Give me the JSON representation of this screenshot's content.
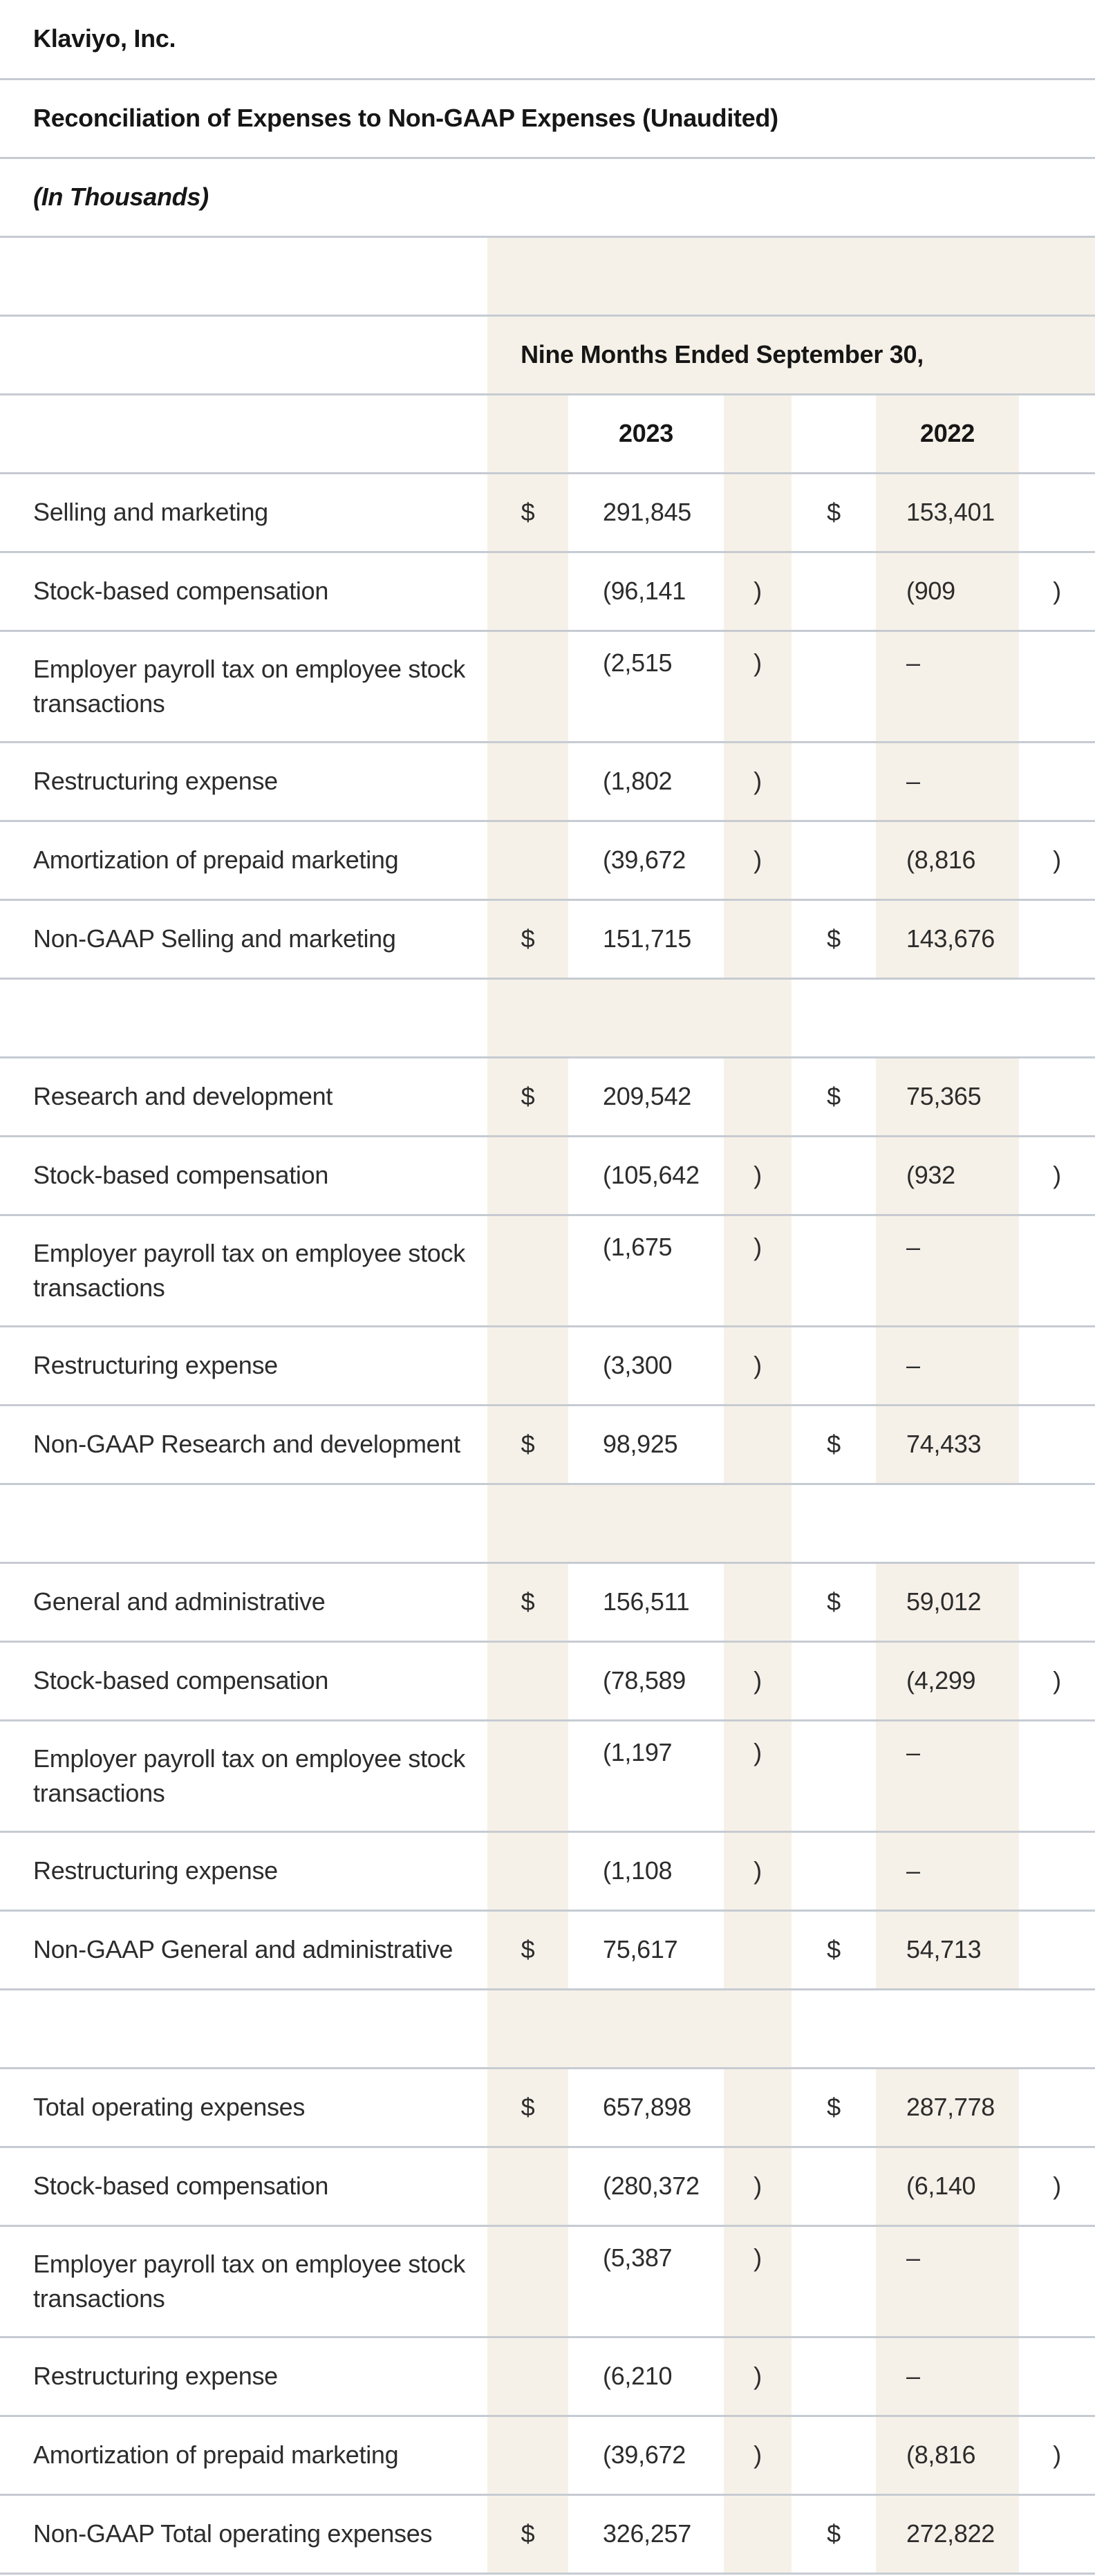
{
  "document": {
    "company": "Klaviyo, Inc.",
    "title": "Reconciliation of Expenses to Non-GAAP Expenses (Unaudited)",
    "units_note": "(In Thousands)"
  },
  "table": {
    "period_header": "Nine Months Ended September 30,",
    "years": [
      "2023",
      "2022"
    ],
    "rows": [
      {
        "kind": "title",
        "ref": "document.company",
        "style": "s-bold"
      },
      {
        "kind": "title",
        "ref": "document.title",
        "style": "s-bold"
      },
      {
        "kind": "title",
        "ref": "document.units_note",
        "style": "s-bold-italic"
      },
      {
        "kind": "period-spacer"
      },
      {
        "kind": "period-header"
      },
      {
        "kind": "year-header"
      },
      {
        "kind": "data",
        "label": "Selling and marketing",
        "d1": "$",
        "v1": "291,845",
        "d2": "$",
        "v2": "153,401"
      },
      {
        "kind": "data",
        "label": "Stock-based compensation",
        "v1": "(96,141",
        "p1": ")",
        "v2": "(909",
        "p2": ")"
      },
      {
        "kind": "data",
        "tall": true,
        "label": "Employer payroll tax on employee stock\ntransactions",
        "v1": "(2,515",
        "p1": ")",
        "v2": "–"
      },
      {
        "kind": "data",
        "label": "Restructuring expense",
        "v1": "(1,802",
        "p1": ")",
        "v2": "–"
      },
      {
        "kind": "data",
        "label": "Amortization of prepaid marketing",
        "v1": "(39,672",
        "p1": ")",
        "v2": "(8,816",
        "p2": ")"
      },
      {
        "kind": "data",
        "label": "Non-GAAP Selling and marketing",
        "d1": "$",
        "v1": "151,715",
        "d2": "$",
        "v2": "143,676"
      },
      {
        "kind": "section-spacer"
      },
      {
        "kind": "data",
        "label": "Research and development",
        "d1": "$",
        "v1": "209,542",
        "d2": "$",
        "v2": "75,365"
      },
      {
        "kind": "data",
        "label": "Stock-based compensation",
        "v1": "(105,642",
        "p1": ")",
        "v2": "(932",
        "p2": ")"
      },
      {
        "kind": "data",
        "tall": true,
        "label": "Employer payroll tax on employee stock\ntransactions",
        "v1": "(1,675",
        "p1": ")",
        "v2": "–"
      },
      {
        "kind": "data",
        "label": "Restructuring expense",
        "v1": "(3,300",
        "p1": ")",
        "v2": "–"
      },
      {
        "kind": "data",
        "label": "Non-GAAP Research and development",
        "d1": "$",
        "v1": "98,925",
        "d2": "$",
        "v2": "74,433"
      },
      {
        "kind": "section-spacer"
      },
      {
        "kind": "data",
        "label": "General and administrative",
        "d1": "$",
        "v1": "156,511",
        "d2": "$",
        "v2": "59,012"
      },
      {
        "kind": "data",
        "label": "Stock-based compensation",
        "v1": "(78,589",
        "p1": ")",
        "v2": "(4,299",
        "p2": ")"
      },
      {
        "kind": "data",
        "tall": true,
        "label": "Employer payroll tax on employee stock\ntransactions",
        "v1": "(1,197",
        "p1": ")",
        "v2": "–"
      },
      {
        "kind": "data",
        "label": "Restructuring expense",
        "v1": "(1,108",
        "p1": ")",
        "v2": "–"
      },
      {
        "kind": "data",
        "label": "Non-GAAP General and administrative",
        "d1": "$",
        "v1": "75,617",
        "d2": "$",
        "v2": "54,713"
      },
      {
        "kind": "section-spacer"
      },
      {
        "kind": "data",
        "label": "Total operating expenses",
        "d1": "$",
        "v1": "657,898",
        "d2": "$",
        "v2": "287,778"
      },
      {
        "kind": "data",
        "label": "Stock-based compensation",
        "v1": "(280,372",
        "p1": ")",
        "v2": "(6,140",
        "p2": ")"
      },
      {
        "kind": "data",
        "tall": true,
        "label": "Employer payroll tax on employee stock\ntransactions",
        "v1": "(5,387",
        "p1": ")",
        "v2": "–"
      },
      {
        "kind": "data",
        "label": "Restructuring expense",
        "v1": "(6,210",
        "p1": ")",
        "v2": "–"
      },
      {
        "kind": "data",
        "label": "Amortization of prepaid marketing",
        "v1": "(39,672",
        "p1": ")",
        "v2": "(8,816",
        "p2": ")"
      },
      {
        "kind": "data",
        "label": "Non-GAAP Total operating expenses",
        "d1": "$",
        "v1": "326,257",
        "d2": "$",
        "v2": "272,822"
      }
    ]
  },
  "colors": {
    "shade_beige": "#F6F1E8",
    "divider_gray": "#C6CBD2",
    "text": "#2C2C2C",
    "text_bold": "#161616",
    "background": "#FFFFFF"
  }
}
